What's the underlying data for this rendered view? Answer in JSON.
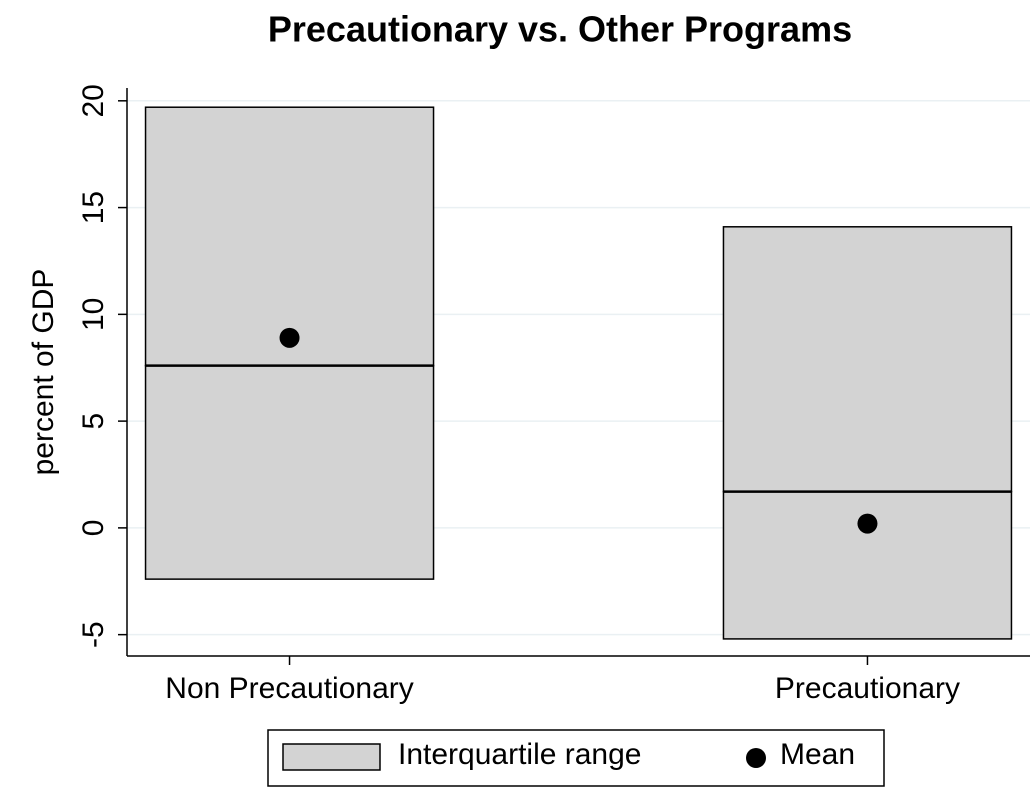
{
  "chart_data": {
    "type": "box",
    "title": "Precautionary vs. Other Programs",
    "y_label": "percent of GDP",
    "categories": [
      "Non Precautionary",
      "Precautionary"
    ],
    "boxes": {
      "name": "Interquartile range",
      "color": "#d3d3d3",
      "q1": [
        -2.4,
        -5.2
      ],
      "median": [
        7.6,
        1.7
      ],
      "q3": [
        19.7,
        14.1
      ]
    },
    "mean": {
      "name": "Mean",
      "color": "#000000",
      "values": [
        8.9,
        0.2
      ]
    },
    "ylim": [
      -6,
      20.6
    ],
    "yticks": [
      -5,
      0,
      5,
      10,
      15,
      20
    ],
    "grid": true
  }
}
